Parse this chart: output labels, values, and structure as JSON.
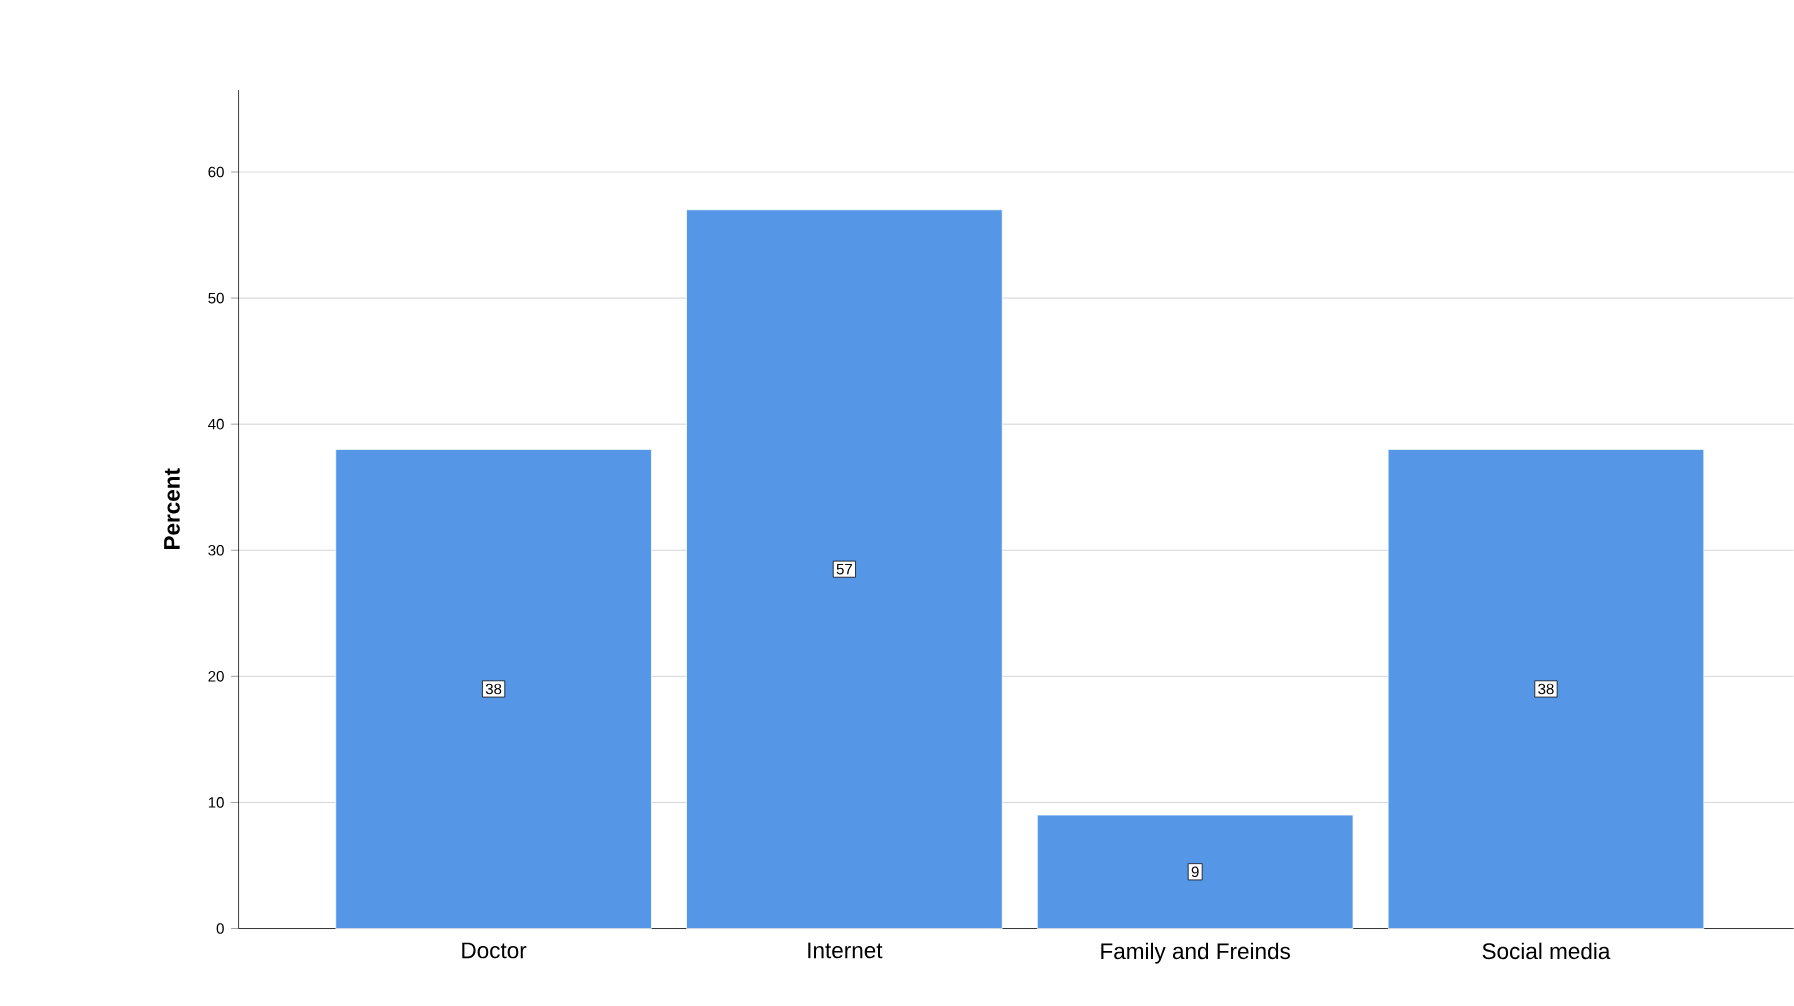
{
  "chart_data": {
    "type": "bar",
    "ylabel": "Percent",
    "categories": [
      "Doctor",
      "Internet",
      "Family and Freinds",
      "Social media"
    ],
    "values": [
      38,
      57,
      9,
      38
    ],
    "color": "#5596e6",
    "ylim": [
      0,
      66.5
    ],
    "yticks": [
      0,
      10,
      20,
      30,
      40,
      50,
      60
    ],
    "grid": "y",
    "data_labels": true
  }
}
